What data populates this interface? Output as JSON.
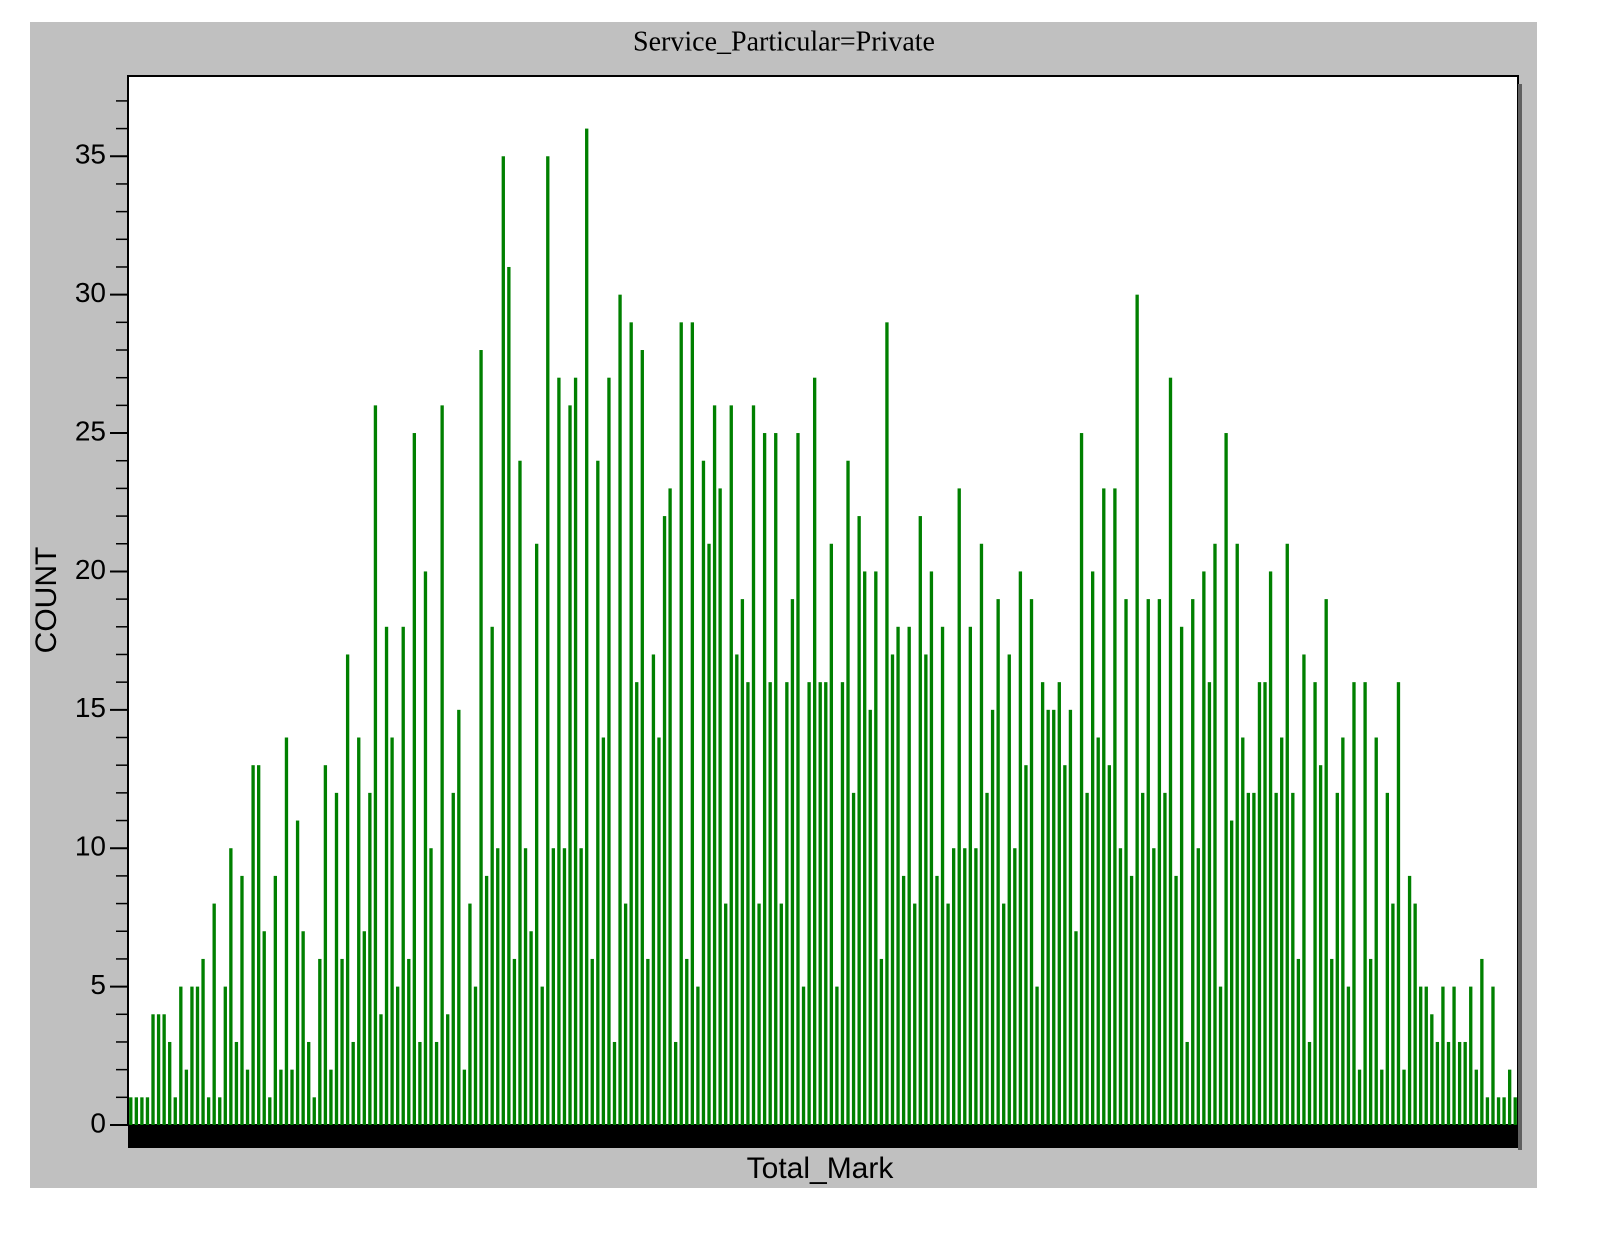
{
  "chart_data": {
    "type": "bar",
    "title": "Service_Particular=Private",
    "xlabel": "Total_Mark",
    "ylabel": "COUNT",
    "color": "#008000",
    "ylim": [
      0,
      37.9
    ],
    "yticks": [
      0,
      5,
      10,
      15,
      20,
      25,
      30,
      35
    ],
    "yminorticks": [
      1,
      2,
      3,
      4,
      6,
      7,
      8,
      9,
      11,
      12,
      13,
      14,
      16,
      17,
      18,
      19,
      21,
      22,
      23,
      24,
      26,
      27,
      28,
      29,
      31,
      32,
      33,
      34,
      36,
      37
    ],
    "values": [
      1,
      1,
      1,
      1,
      4,
      4,
      4,
      3,
      1,
      5,
      2,
      5,
      5,
      6,
      1,
      8,
      1,
      5,
      10,
      3,
      9,
      2,
      13,
      13,
      7,
      1,
      9,
      2,
      14,
      2,
      11,
      7,
      3,
      1,
      6,
      13,
      2,
      12,
      6,
      17,
      3,
      14,
      7,
      12,
      26,
      4,
      18,
      14,
      5,
      18,
      6,
      25,
      3,
      20,
      10,
      3,
      26,
      4,
      12,
      15,
      2,
      8,
      5,
      28,
      9,
      18,
      10,
      35,
      31,
      6,
      24,
      10,
      7,
      21,
      5,
      35,
      10,
      27,
      10,
      26,
      27,
      10,
      36,
      6,
      24,
      14,
      27,
      3,
      30,
      8,
      29,
      16,
      28,
      6,
      17,
      14,
      22,
      23,
      3,
      29,
      6,
      29,
      5,
      24,
      21,
      26,
      23,
      8,
      26,
      17,
      19,
      16,
      26,
      8,
      25,
      16,
      25,
      8,
      16,
      19,
      25,
      5,
      16,
      27,
      16,
      16,
      21,
      5,
      16,
      24,
      12,
      22,
      20,
      15,
      20,
      6,
      29,
      17,
      18,
      9,
      18,
      8,
      22,
      17,
      20,
      9,
      18,
      8,
      10,
      23,
      10,
      18,
      10,
      21,
      12,
      15,
      19,
      8,
      17,
      10,
      20,
      13,
      19,
      5,
      16,
      15,
      15,
      16,
      13,
      15,
      7,
      25,
      12,
      20,
      14,
      23,
      13,
      23,
      10,
      19,
      9,
      30,
      12,
      19,
      10,
      19,
      12,
      27,
      9,
      18,
      3,
      19,
      10,
      20,
      16,
      21,
      5,
      25,
      11,
      21,
      14,
      12,
      12,
      16,
      16,
      20,
      12,
      14,
      21,
      12,
      6,
      17,
      3,
      16,
      13,
      19,
      6,
      12,
      14,
      5,
      16,
      2,
      16,
      6,
      14,
      2,
      12,
      8,
      16,
      2,
      9,
      8,
      5,
      5,
      4,
      3,
      5,
      3,
      5,
      3,
      3,
      5,
      2,
      6,
      1,
      5,
      1,
      1,
      2,
      1
    ]
  }
}
